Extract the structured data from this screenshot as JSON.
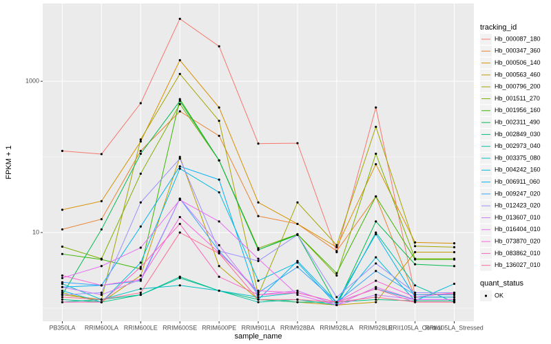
{
  "chart_data": {
    "type": "line",
    "log_y": true,
    "grid": true,
    "x_label": "sample_name",
    "y_label": "FPKM + 1",
    "categories": [
      "PB350LA",
      "RRIM600LA",
      "RRIM600LE",
      "RRIM600SE",
      "RRIM600PE",
      "RRIM901LA",
      "RRIM928BA",
      "RRIM928LA",
      "RRIM928LE",
      "RRII105LA_Control",
      "RRII105LA_Stressed"
    ],
    "ylim": [
      0.67,
      10700
    ],
    "yticks": [
      10,
      1000
    ],
    "minor_yticks": [
      1,
      100
    ],
    "legend_title": "tracking_id",
    "legend_position": "right",
    "point_color": "#000000",
    "shape_legend": {
      "title": "quant_status",
      "labels": [
        "OK"
      ]
    },
    "series": [
      {
        "name": "Hb_000087_180",
        "color": "#F8766D",
        "values": [
          120,
          109,
          513,
          6700,
          2900,
          150,
          152,
          5.5,
          450,
          1.5,
          1.55
        ]
      },
      {
        "name": "Hb_000347_360",
        "color": "#EA8331",
        "values": [
          11,
          15,
          120,
          400,
          190,
          16.5,
          13,
          5.7,
          30,
          1.4,
          1.4
        ]
      },
      {
        "name": "Hb_000506_140",
        "color": "#D89000",
        "values": [
          20,
          26,
          160,
          1900,
          450,
          25,
          13,
          6.4,
          80,
          7.4,
          7.2
        ]
      },
      {
        "name": "Hb_000563_460",
        "color": "#C09B00",
        "values": [
          1.6,
          1.2,
          2.7,
          100,
          3.6,
          1.3,
          1.2,
          1.1,
          1.2,
          5.5,
          5.5
        ]
      },
      {
        "name": "Hb_000796_200",
        "color": "#A3A500",
        "values": [
          1.5,
          1.3,
          170,
          1250,
          300,
          1.5,
          25,
          6.8,
          250,
          6.6,
          6.4
        ]
      },
      {
        "name": "Hb_001511_270",
        "color": "#7CAE00",
        "values": [
          6.5,
          4.5,
          60,
          500,
          90,
          6.2,
          9.5,
          2.7,
          110,
          4.5,
          4.5
        ]
      },
      {
        "name": "Hb_001956_160",
        "color": "#39B600",
        "values": [
          5.2,
          4.4,
          3.3,
          580,
          90,
          5.9,
          9.5,
          2.9,
          30,
          4.4,
          4.4
        ]
      },
      {
        "name": "Hb_002311_490",
        "color": "#00BB4E",
        "values": [
          1.5,
          11,
          110,
          550,
          90,
          5.9,
          9.3,
          1.1,
          14,
          3.8,
          3.6
        ]
      },
      {
        "name": "Hb_002849_030",
        "color": "#00BF7D",
        "values": [
          1.3,
          1.2,
          1.5,
          2.6,
          1.7,
          1.3,
          1.2,
          1.2,
          1.3,
          1.25,
          1.25
        ]
      },
      {
        "name": "Hb_002973_040",
        "color": "#00C1A3",
        "values": [
          1.2,
          1.3,
          1.5,
          2.5,
          1.7,
          1.2,
          1.3,
          1.1,
          10,
          2.0,
          1.2
        ]
      },
      {
        "name": "Hb_003375_080",
        "color": "#00BFC4",
        "values": [
          2.1,
          1.3,
          1.8,
          2.0,
          1.7,
          1.4,
          1.6,
          1.2,
          1.8,
          1.3,
          1.3
        ]
      },
      {
        "name": "Hb_004242_160",
        "color": "#00BAE0",
        "values": [
          1.7,
          1.2,
          4.0,
          70,
          34,
          2.3,
          4.0,
          1.1,
          4.7,
          1.25,
          2.1
        ]
      },
      {
        "name": "Hb_006911_060",
        "color": "#00B0F6",
        "values": [
          1.9,
          2.0,
          12,
          75,
          50,
          1.3,
          4.2,
          1.2,
          9.5,
          1.4,
          1.4
        ]
      },
      {
        "name": "Hb_009247_020",
        "color": "#35A2FF",
        "values": [
          2.2,
          2.0,
          2.3,
          28,
          5.7,
          1.6,
          3.5,
          1.2,
          3.1,
          1.5,
          1.5
        ]
      },
      {
        "name": "Hb_012423_020",
        "color": "#9590FF",
        "values": [
          1.5,
          1.6,
          25,
          95,
          5.7,
          4.2,
          9.3,
          1.4,
          3.9,
          1.6,
          1.6
        ]
      },
      {
        "name": "Hb_013607_010",
        "color": "#C77CFF",
        "values": [
          1.9,
          1.5,
          2.4,
          28,
          6.8,
          1.5,
          1.7,
          1.1,
          1.5,
          1.3,
          1.3
        ]
      },
      {
        "name": "Hb_016404_010",
        "color": "#E76BF3",
        "values": [
          2.5,
          3.6,
          6.3,
          27,
          14,
          4.5,
          1.5,
          1.1,
          1.9,
          1.3,
          1.3
        ]
      },
      {
        "name": "Hb_073870_020",
        "color": "#FA62DB",
        "values": [
          2.7,
          2.0,
          2.4,
          16,
          5.4,
          1.7,
          1.6,
          1.2,
          2.3,
          1.4,
          1.6
        ]
      },
      {
        "name": "Hb_083862_010",
        "color": "#FF62BC",
        "values": [
          1.2,
          1.2,
          3.5,
          13,
          2.6,
          1.5,
          1.6,
          1.2,
          1.8,
          1.2,
          1.2
        ]
      },
      {
        "name": "Hb_136027_010",
        "color": "#FF6C91",
        "values": [
          1.4,
          1.3,
          1.6,
          10,
          5.3,
          1.3,
          1.3,
          1.2,
          1.4,
          1.2,
          1.2
        ]
      }
    ]
  }
}
